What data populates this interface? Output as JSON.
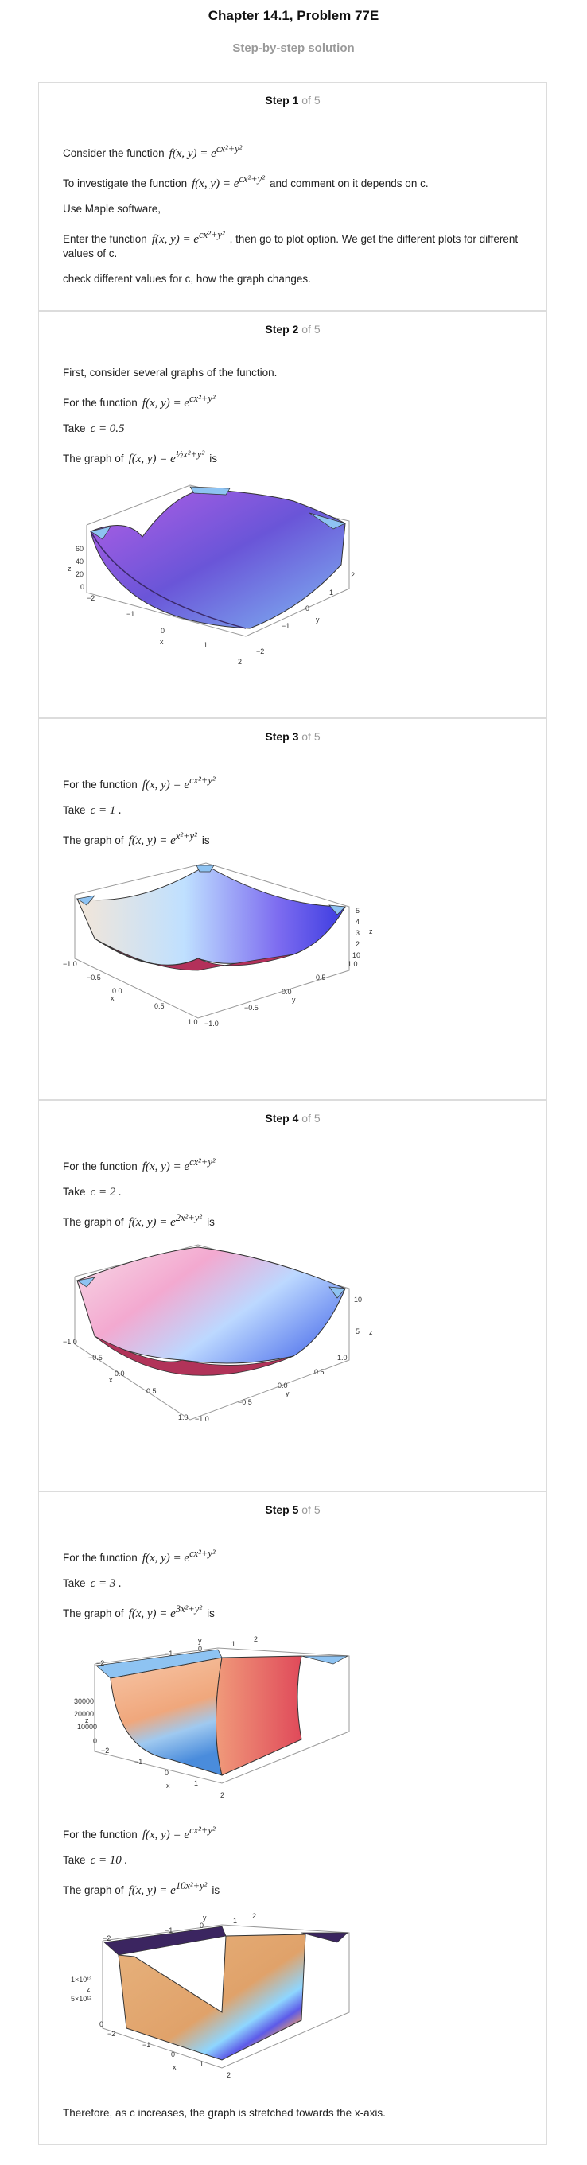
{
  "header": {
    "title": "Chapter 14.1, Problem 77E",
    "subtitle": "Step-by-step solution"
  },
  "steps": [
    {
      "label": "Step 1",
      "of": "of 5",
      "intro": "Consider the function",
      "investigate": "To investigate the function",
      "investigate_tail": "and comment on it depends on c.",
      "maple": "Use Maple software,",
      "enter": "Enter the function",
      "enter_tail": ", then go to plot option. We get the different plots for different values of c.",
      "check": "check different values for c, how the graph changes."
    },
    {
      "label": "Step 2",
      "of": "of 5",
      "first": "First, consider several graphs of the function.",
      "for_fn": "For the function",
      "take": "Take",
      "c_value": "c = 0.5",
      "graph_of": "The graph of",
      "is": "is",
      "ticks": {
        "z": [
          "60",
          "40",
          "20",
          "0"
        ],
        "x": [
          "−2",
          "−1",
          "0",
          "1",
          "2"
        ],
        "y": [
          "−2",
          "−1",
          "0",
          "1",
          "2"
        ],
        "xlabel": "x",
        "ylabel": "y",
        "zlabel": "z"
      }
    },
    {
      "label": "Step 3",
      "of": "of 5",
      "for_fn": "For the function",
      "take": "Take",
      "c_value": "c = 1 .",
      "graph_of": "The graph of",
      "is": "is",
      "ticks": {
        "z": [
          "5",
          "4",
          "3",
          "2",
          "10"
        ],
        "x": [
          "−1.0",
          "−0.5",
          "0.0",
          "0.5",
          "1.0"
        ],
        "y": [
          "−1.0",
          "−0.5",
          "0.0",
          "0.5",
          "1.0"
        ],
        "xlabel": "x",
        "ylabel": "y",
        "zlabel": "z"
      }
    },
    {
      "label": "Step 4",
      "of": "of 5",
      "for_fn": "For the function",
      "take": "Take",
      "c_value": "c = 2 .",
      "graph_of": "The graph of",
      "is": "is",
      "ticks": {
        "z": [
          "10",
          "5"
        ],
        "x": [
          "−1.0",
          "−0.5",
          "0.0",
          "0.5",
          "1.0"
        ],
        "y": [
          "−1.0",
          "−0.5",
          "0.0",
          "0.5",
          "1.0"
        ],
        "xlabel": "x",
        "ylabel": "y",
        "zlabel": "z"
      }
    },
    {
      "label": "Step 5",
      "of": "of 5",
      "for_fn": "For the function",
      "take": "Take",
      "c_value": "c = 3 .",
      "graph_of": "The graph of",
      "is": "is",
      "ticks": {
        "z": [
          "30000",
          "20000",
          "10000",
          "0"
        ],
        "x": [
          "−2",
          "−1",
          "0",
          "1",
          "2"
        ],
        "y": [
          "−2",
          "−1",
          "0",
          "1",
          "2"
        ],
        "xlabel": "x",
        "ylabel": "y",
        "zlabel": "z"
      },
      "for_fn2": "For the function",
      "take2": "Take",
      "c_value2": "c = 10 .",
      "graph_of2": "The graph of",
      "is2": "is",
      "ticks2": {
        "z": [
          "1×10¹³",
          "5×10¹²",
          "0"
        ],
        "x": [
          "−2",
          "−1",
          "0",
          "1",
          "2"
        ],
        "y": [
          "−2",
          "−1",
          "0",
          "1",
          "2"
        ],
        "xlabel": "x",
        "ylabel": "y",
        "zlabel": "z"
      },
      "conclusion": "Therefore, as c increases, the graph is stretched towards the x-axis."
    }
  ],
  "formulas": {
    "general": "f(x, y) = e^(cx² + y²)",
    "f": "f(x, y) = e",
    "exp_general": "cx²+y²",
    "exp_half": "½x²+y²",
    "exp_1": "x²+y²",
    "exp_2": "2x²+y²",
    "exp_3": "3x²+y²",
    "exp_10": "10x²+y²"
  }
}
